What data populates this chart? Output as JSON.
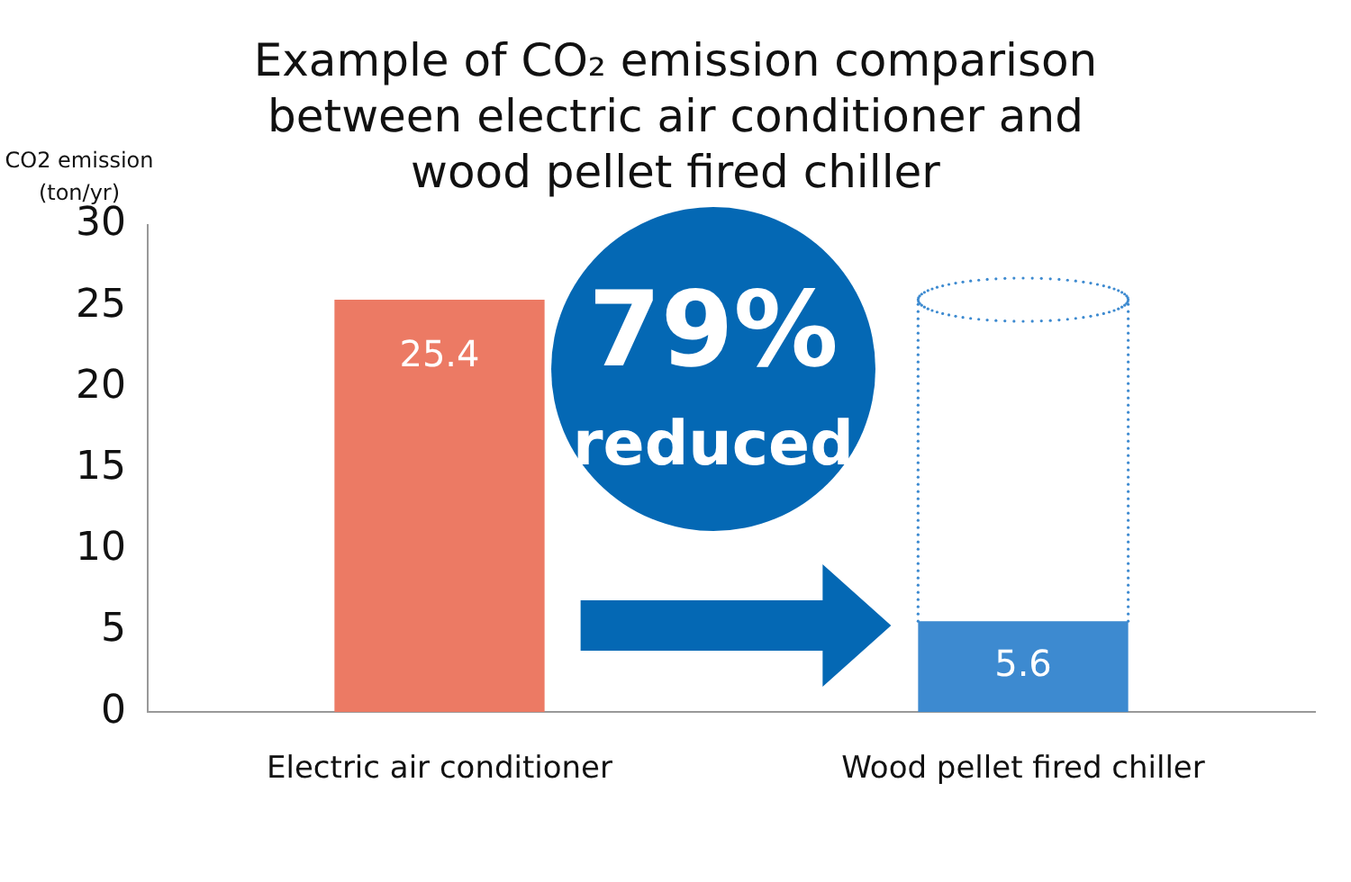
{
  "chart_data": {
    "type": "bar",
    "title": "Example of CO₂ emission comparison between electric air conditioner and wood pellet fired chiller",
    "ylabel": "CO2 emission (ton/yr)",
    "categories": [
      "Electric air conditioner",
      "Wood pellet fired chiller"
    ],
    "values": [
      25.4,
      5.6
    ],
    "colors": [
      "#ec7a64",
      "#3d8ad0"
    ],
    "data_labels": true,
    "ylim": [
      0,
      30
    ],
    "yticks": [
      0,
      5,
      10,
      15,
      20,
      25,
      30
    ],
    "annotations": [
      "79%",
      "reduced"
    ]
  }
}
